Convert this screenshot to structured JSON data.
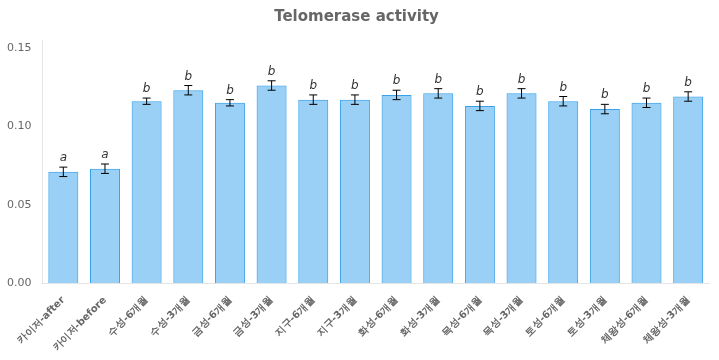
{
  "chart_data": {
    "type": "bar",
    "title": "Telomerase activity",
    "categories": [
      "카이저-after",
      "카이저-before",
      "수성-6개월",
      "수성-3개월",
      "금성-6개월",
      "금성-3개월",
      "지구-6개월",
      "지구-3개월",
      "화성-6개월",
      "화성-3개월",
      "목성-6개월",
      "목성-3개월",
      "토성-6개월",
      "토성-3개월",
      "체왕성-6개월",
      "체왕성-3개월"
    ],
    "values": [
      0.071,
      0.073,
      0.116,
      0.123,
      0.115,
      0.126,
      0.117,
      0.117,
      0.12,
      0.121,
      0.113,
      0.121,
      0.116,
      0.111,
      0.115,
      0.119
    ],
    "errors": [
      0.003,
      0.003,
      0.002,
      0.003,
      0.002,
      0.003,
      0.003,
      0.003,
      0.003,
      0.003,
      0.003,
      0.003,
      0.003,
      0.003,
      0.003,
      0.003
    ],
    "annotations": [
      "a",
      "a",
      "b",
      "b",
      "b",
      "b",
      "b",
      "b",
      "b",
      "b",
      "b",
      "b",
      "b",
      "b",
      "b",
      "b"
    ],
    "ylim": [
      0.0,
      0.155
    ],
    "yticks": [
      {
        "value": 0.0,
        "label": "0.00"
      },
      {
        "value": 0.05,
        "label": "0.05"
      },
      {
        "value": 0.1,
        "label": "0.10"
      },
      {
        "value": 0.15,
        "label": "0.15"
      }
    ],
    "grid": false
  }
}
